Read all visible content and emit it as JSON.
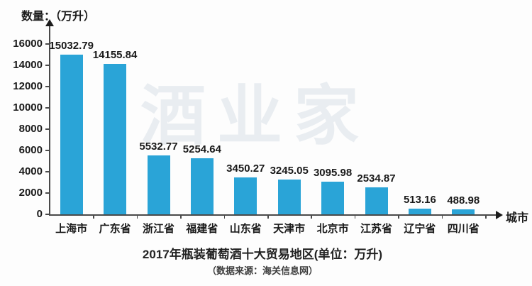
{
  "watermark": {
    "text": "酒业家",
    "color": "#e9edf1"
  },
  "chart_data": {
    "type": "bar",
    "title": "2017年瓶装葡萄酒十大贸易地区(单位：万升)",
    "subtitle": "（数据来源：海关信息网）",
    "y_axis_label": "数量：（万升）",
    "x_axis_label": "城市",
    "categories": [
      "上海市",
      "广东省",
      "浙江省",
      "福建省",
      "山东省",
      "天津市",
      "北京市",
      "江苏省",
      "辽宁省",
      "四川省"
    ],
    "values": [
      15032.79,
      14155.84,
      5532.77,
      5254.64,
      3450.27,
      3245.05,
      3095.98,
      2534.87,
      513.16,
      488.98
    ],
    "y_ticks": [
      0,
      2000,
      4000,
      6000,
      8000,
      10000,
      12000,
      14000,
      16000
    ],
    "ylim": [
      0,
      16000
    ],
    "bar_color": "#2aa4d7",
    "grid": false,
    "legend": "none"
  }
}
